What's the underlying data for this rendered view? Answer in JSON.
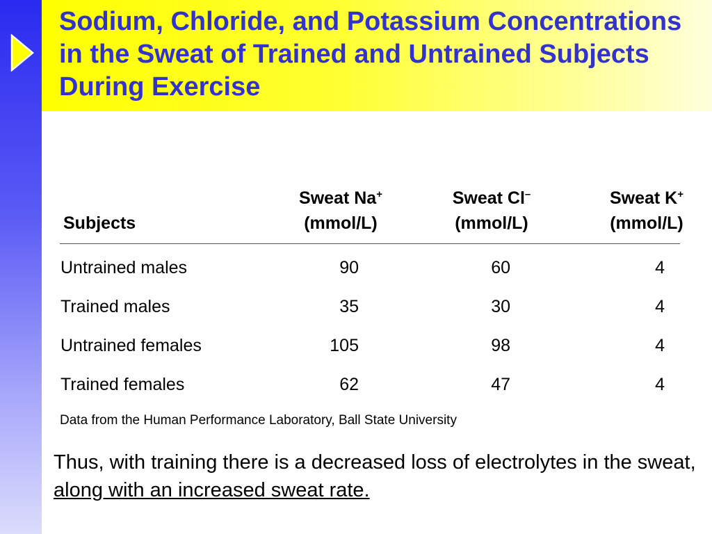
{
  "slide": {
    "title": "Sodium, Chloride, and Potassium Concentrations in the Sweat of Trained and Untrained Subjects During Exercise",
    "bullet_icon": "triangle-right-icon",
    "colors": {
      "title": "#3333cc",
      "title_band": "#ffff00",
      "side_bar": "#2a2af0"
    }
  },
  "table": {
    "headers": {
      "subjects": "Subjects",
      "na_name": "Sweat Na",
      "na_sup": "+",
      "na_unit": "(mmol/L)",
      "cl_name": "Sweat Cl",
      "cl_sup": "–",
      "cl_unit": "(mmol/L)",
      "k_name": "Sweat K",
      "k_sup": "+",
      "k_unit": "(mmol/L)"
    },
    "rows": [
      {
        "subject": "Untrained males",
        "na": "90",
        "cl": "60",
        "k": "4"
      },
      {
        "subject": "Trained males",
        "na": "35",
        "cl": "30",
        "k": "4"
      },
      {
        "subject": "Untrained females",
        "na": "105",
        "cl": "98",
        "k": "4"
      },
      {
        "subject": "Trained females",
        "na": "62",
        "cl": "47",
        "k": "4"
      }
    ],
    "source_note": "Data from the Human Performance Laboratory, Ball State University"
  },
  "conclusion": {
    "text": "Thus, with training there is a decreased loss of electrolytes in the sweat, ",
    "emphasis": "along with an increased sweat rate."
  }
}
